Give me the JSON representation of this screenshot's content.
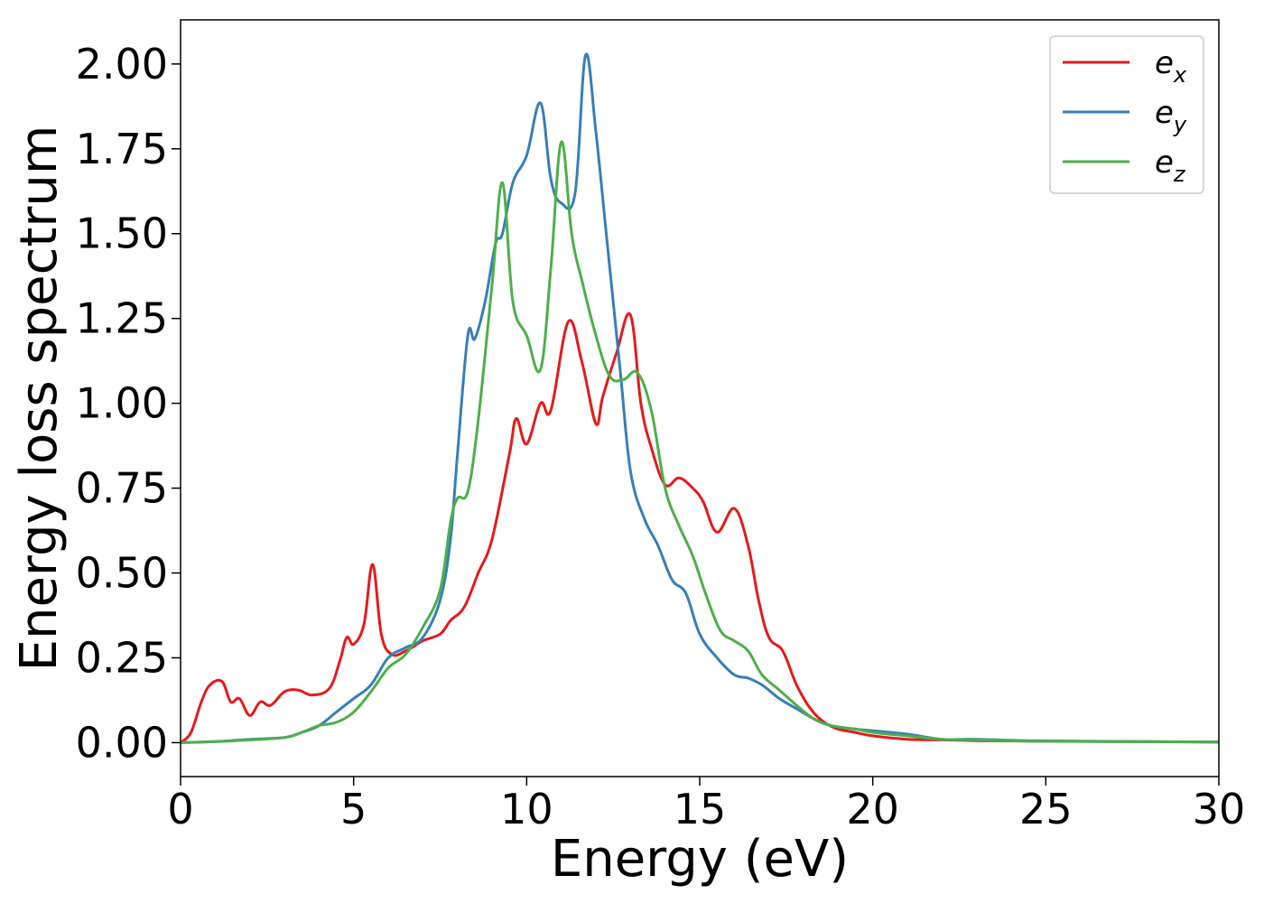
{
  "chart_data": {
    "type": "line",
    "title": "",
    "xlabel": "Energy (eV)",
    "ylabel": "Energy loss spectrum",
    "xlim": [
      0,
      30
    ],
    "ylim": [
      -0.1,
      2.13
    ],
    "xticks": [
      0,
      5,
      10,
      15,
      20,
      25,
      30
    ],
    "yticks": [
      0.0,
      0.25,
      0.5,
      0.75,
      1.0,
      1.25,
      1.5,
      1.75,
      2.0
    ],
    "xtick_labels": [
      "0",
      "5",
      "10",
      "15",
      "20",
      "25",
      "30"
    ],
    "ytick_labels": [
      "0.00",
      "0.25",
      "0.50",
      "0.75",
      "1.00",
      "1.25",
      "1.50",
      "1.75",
      "2.00"
    ],
    "grid": false,
    "legend_position": "top-right",
    "series": [
      {
        "name": "e_x",
        "legend_main": "e",
        "legend_sub": "x",
        "color": "#e41a1c",
        "x": [
          0,
          0.3,
          0.6,
          0.85,
          1.2,
          1.45,
          1.7,
          2.0,
          2.3,
          2.6,
          3.0,
          3.4,
          3.8,
          4.3,
          4.6,
          4.8,
          5.0,
          5.3,
          5.55,
          5.8,
          6.1,
          6.5,
          7.0,
          7.5,
          7.8,
          8.2,
          8.6,
          9.0,
          9.5,
          9.7,
          10.0,
          10.4,
          10.7,
          11.2,
          11.6,
          12.0,
          12.2,
          12.6,
          13.0,
          13.3,
          13.6,
          14.0,
          14.4,
          14.8,
          15.1,
          15.5,
          16.0,
          16.4,
          16.7,
          17.0,
          17.4,
          17.8,
          18.2,
          18.6,
          19.0,
          19.5,
          20.0,
          21.0,
          22.0,
          23.0,
          25.0,
          30.0
        ],
        "y": [
          0.0,
          0.03,
          0.12,
          0.17,
          0.18,
          0.12,
          0.13,
          0.08,
          0.12,
          0.11,
          0.15,
          0.155,
          0.14,
          0.16,
          0.24,
          0.31,
          0.29,
          0.35,
          0.525,
          0.32,
          0.26,
          0.27,
          0.3,
          0.32,
          0.36,
          0.4,
          0.5,
          0.6,
          0.85,
          0.955,
          0.88,
          1.0,
          0.98,
          1.24,
          1.12,
          0.94,
          1.02,
          1.15,
          1.26,
          1.0,
          0.87,
          0.76,
          0.78,
          0.75,
          0.71,
          0.62,
          0.69,
          0.58,
          0.42,
          0.31,
          0.27,
          0.17,
          0.1,
          0.06,
          0.04,
          0.03,
          0.02,
          0.01,
          0.008,
          0.006,
          0.004,
          0.002
        ]
      },
      {
        "name": "e_y",
        "legend_main": "e",
        "legend_sub": "y",
        "color": "#377eb8",
        "x": [
          0,
          1.0,
          2.0,
          3.0,
          3.5,
          4.0,
          4.5,
          5.0,
          5.5,
          6.0,
          6.5,
          7.0,
          7.5,
          7.8,
          8.0,
          8.3,
          8.5,
          8.8,
          9.1,
          9.3,
          9.6,
          10.0,
          10.4,
          10.7,
          11.0,
          11.4,
          11.7,
          12.0,
          12.3,
          12.7,
          13.0,
          13.4,
          13.8,
          14.2,
          14.6,
          15.0,
          15.5,
          16.0,
          16.4,
          16.8,
          17.3,
          17.8,
          18.3,
          18.8,
          19.5,
          20.0,
          21.0,
          22.0,
          23.0,
          25.0,
          30.0
        ],
        "y": [
          0.0,
          0.003,
          0.01,
          0.015,
          0.03,
          0.05,
          0.09,
          0.13,
          0.17,
          0.25,
          0.28,
          0.31,
          0.42,
          0.6,
          0.85,
          1.2,
          1.19,
          1.3,
          1.47,
          1.5,
          1.65,
          1.73,
          1.885,
          1.66,
          1.59,
          1.62,
          2.025,
          1.8,
          1.5,
          1.1,
          0.8,
          0.66,
          0.58,
          0.48,
          0.44,
          0.32,
          0.25,
          0.2,
          0.19,
          0.17,
          0.13,
          0.1,
          0.07,
          0.05,
          0.04,
          0.035,
          0.025,
          0.01,
          0.01,
          0.005,
          0.002
        ]
      },
      {
        "name": "e_z",
        "legend_main": "e",
        "legend_sub": "z",
        "color": "#4daf4a",
        "x": [
          0,
          1.0,
          2.0,
          3.0,
          3.5,
          4.0,
          4.5,
          5.0,
          5.5,
          6.0,
          6.5,
          7.0,
          7.5,
          7.8,
          8.0,
          8.3,
          8.6,
          9.0,
          9.3,
          9.6,
          10.0,
          10.4,
          10.7,
          11.0,
          11.3,
          11.6,
          12.0,
          12.4,
          12.8,
          13.2,
          13.6,
          14.0,
          14.4,
          14.8,
          15.2,
          15.6,
          16.0,
          16.4,
          16.8,
          17.3,
          17.8,
          18.3,
          18.8,
          19.5,
          20.0,
          21.0,
          22.0,
          23.0,
          25.0,
          30.0
        ],
        "y": [
          0.0,
          0.003,
          0.008,
          0.015,
          0.03,
          0.05,
          0.06,
          0.09,
          0.15,
          0.22,
          0.26,
          0.34,
          0.45,
          0.65,
          0.72,
          0.74,
          0.95,
          1.35,
          1.65,
          1.3,
          1.2,
          1.1,
          1.4,
          1.77,
          1.5,
          1.36,
          1.2,
          1.08,
          1.07,
          1.09,
          0.98,
          0.75,
          0.64,
          0.55,
          0.43,
          0.33,
          0.3,
          0.27,
          0.2,
          0.155,
          0.11,
          0.07,
          0.05,
          0.04,
          0.03,
          0.02,
          0.01,
          0.008,
          0.004,
          0.002
        ]
      }
    ]
  }
}
